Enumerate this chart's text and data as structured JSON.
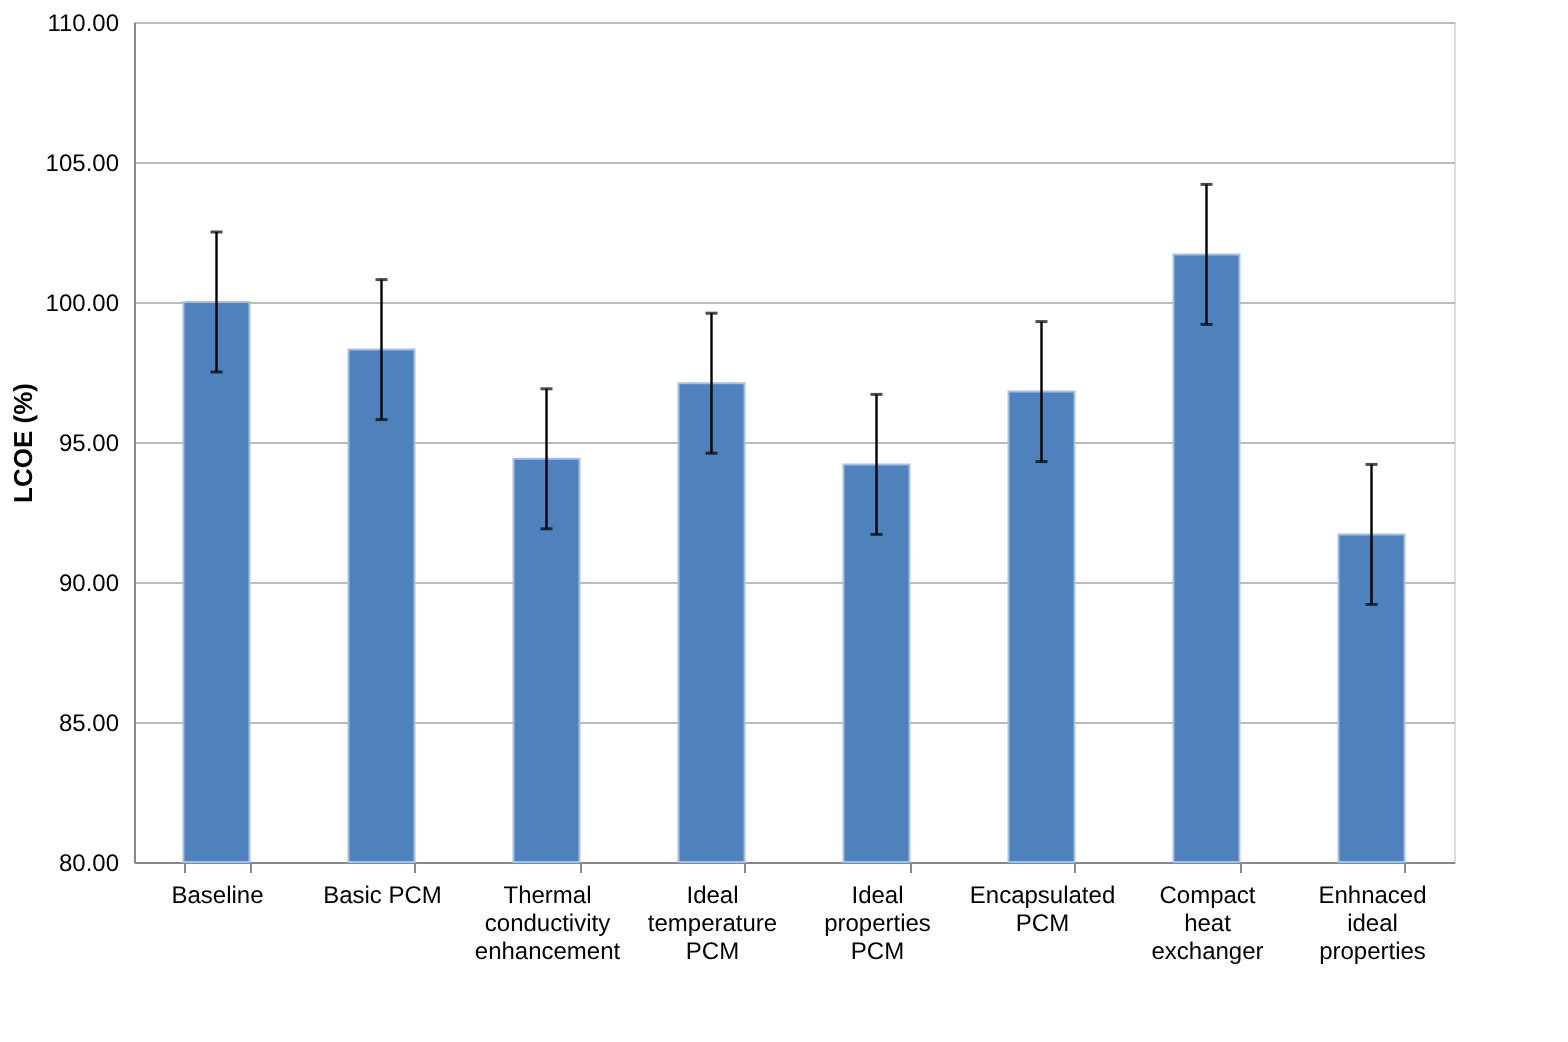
{
  "chart_data": {
    "type": "bar",
    "ylabel": "LCOE (%)",
    "categories": [
      "Baseline",
      "Basic PCM",
      "Thermal\nconductivity\nenhancement",
      "Ideal\ntemperature\nPCM",
      "Ideal\nproperties\nPCM",
      "Encapsulated\nPCM",
      "Compact\nheat\nexchanger",
      "Enhnaced\nideal\nproperties"
    ],
    "values": [
      100.0,
      98.3,
      94.4,
      97.1,
      94.2,
      96.8,
      101.7,
      91.7
    ],
    "errors": [
      2.5,
      2.5,
      2.5,
      2.5,
      2.5,
      2.5,
      2.5,
      2.5
    ],
    "color": "#4f81bd",
    "ylim": [
      80,
      110
    ],
    "yticks": [
      {
        "value": 80,
        "label": "80.00"
      },
      {
        "value": 85,
        "label": "85.00"
      },
      {
        "value": 90,
        "label": "90.00"
      },
      {
        "value": 95,
        "label": "95.00"
      },
      {
        "value": 100,
        "label": "100.00"
      },
      {
        "value": 105,
        "label": "105.00"
      },
      {
        "value": 110,
        "label": "110.00"
      }
    ],
    "grid": "y"
  }
}
